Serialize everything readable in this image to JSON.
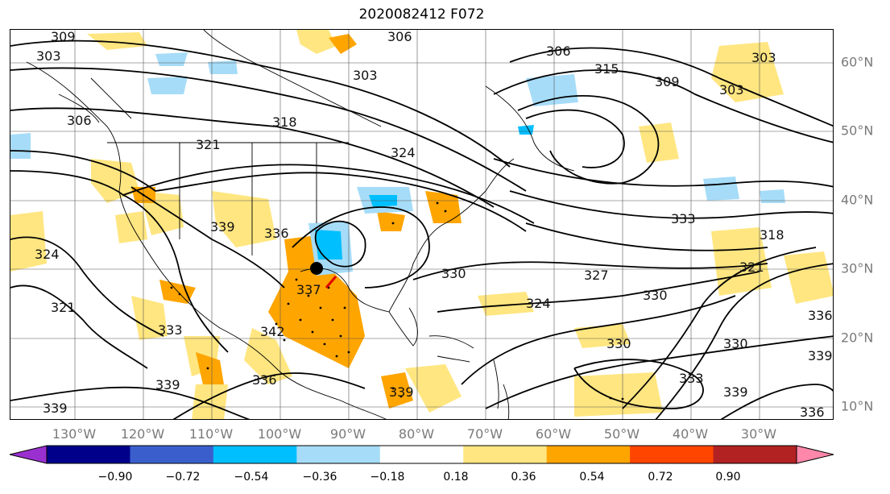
{
  "title": "2020082412 F072",
  "longitude_labels": [
    "130°W",
    "120°W",
    "110°W",
    "100°W",
    "90°W",
    "80°W",
    "70°W",
    "60°W",
    "50°W",
    "40°W",
    "30°W"
  ],
  "latitude_labels": [
    "60°N",
    "50°N",
    "40°N",
    "30°N",
    "20°N",
    "10°N"
  ],
  "colorbar": {
    "ticks": [
      "−0.90",
      "−0.72",
      "−0.54",
      "−0.36",
      "−0.18",
      "0.18",
      "0.36",
      "0.54",
      "0.72",
      "0.90"
    ],
    "under_color": "#9b30d0",
    "colors": [
      "#9b30d0",
      "#00008b",
      "#3a5fcd",
      "#00bfff",
      "#a6dcf8",
      "#ffffff",
      "#ffe680",
      "#ffa500",
      "#ff4500",
      "#b22222",
      "#ff88aa"
    ],
    "over_color": "#ff88aa"
  },
  "contour_labels": [
    "309",
    "303",
    "306",
    "315",
    "309",
    "303",
    "306",
    "303",
    "318",
    "324",
    "321",
    "306",
    "303",
    "333",
    "318",
    "339",
    "336",
    "324",
    "321",
    "330",
    "327",
    "330",
    "321",
    "339",
    "333",
    "342",
    "337",
    "324",
    "330",
    "336",
    "339",
    "339",
    "333",
    "336",
    "330",
    "339",
    "339",
    "336"
  ],
  "colors": {
    "contour": "#000000",
    "grid": "#555555",
    "coast": "#000000"
  }
}
